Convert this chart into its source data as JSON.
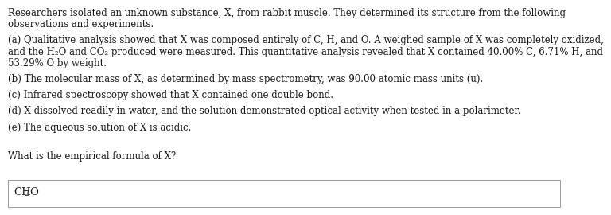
{
  "background_color": "#ffffff",
  "text_color": "#1a1a1a",
  "font_family": "DejaVu Serif",
  "font_size_body": 8.5,
  "font_size_answer": 9.5,
  "intro_line1": "Researchers isolated an unknown substance, X, from rabbit muscle. They determined its structure from the following",
  "intro_line2": "observations and experiments.",
  "para_a_line1": "(a) Qualitative analysis showed that X was composed entirely of C, H, and O. A weighed sample of X was completely oxidized,",
  "para_a_line2": "and the H₂O and CO₂ produced were measured. This quantitative analysis revealed that X contained 40.00% C, 6.71% H, and",
  "para_a_line3": "53.29% O by weight.",
  "para_b": "(b) The molecular mass of X, as determined by mass spectrometry, was 90.00 atomic mass units (u).",
  "para_c": "(c) Infrared spectroscopy showed that X contained one double bond.",
  "para_d": "(d) X dissolved readily in water, and the solution demonstrated optical activity when tested in a polarimeter.",
  "para_e": "(e) The aqueous solution of X is acidic.",
  "question": "What is the empirical formula of X?",
  "answer_prefix": "CH",
  "answer_subscript": "2",
  "answer_suffix": "O"
}
